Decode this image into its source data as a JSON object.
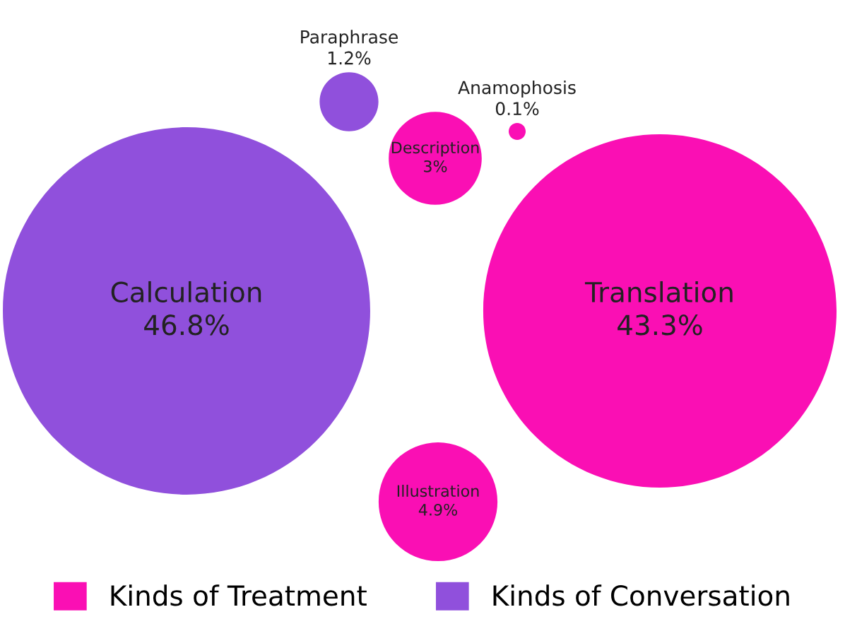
{
  "chart_data": {
    "type": "other",
    "categories": [
      "Calculation",
      "Translation",
      "Illustration",
      "Description",
      "Paraphrase",
      "Anamophosis"
    ],
    "series": [
      {
        "name": "Kinds of Treatment",
        "color": "#fa0fb4",
        "values": [
          null,
          43.3,
          4.9,
          3,
          null,
          0.1
        ],
        "value_labels": [
          null,
          "43.3%",
          "4.9%",
          "3%",
          null,
          "0.1%"
        ]
      },
      {
        "name": "Kinds of Conversation",
        "color": "#9050dc",
        "values": [
          46.8,
          null,
          null,
          null,
          1.2,
          null
        ],
        "value_labels": [
          "46.8%",
          null,
          null,
          null,
          "1.2%",
          null
        ]
      }
    ],
    "legend": "bottom"
  }
}
